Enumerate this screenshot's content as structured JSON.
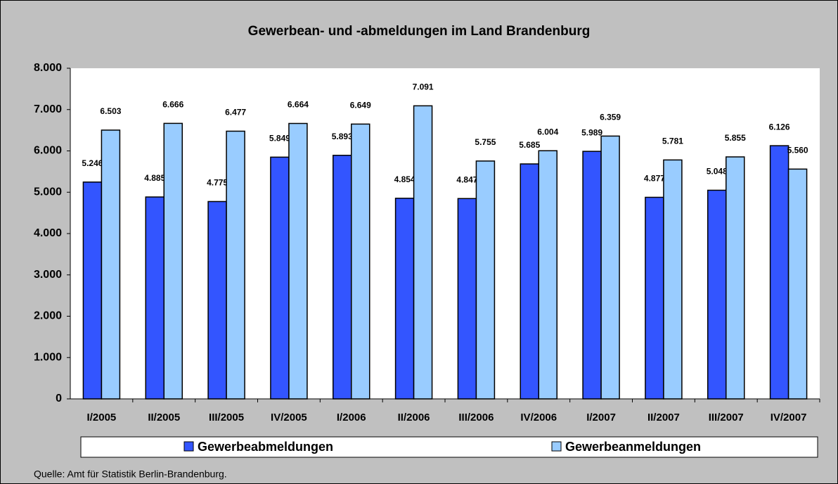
{
  "chart_data": {
    "type": "bar",
    "title": "Gewerbean- und -abmeldungen im Land Brandenburg",
    "source": "Quelle: Amt für Statistik Berlin-Brandenburg.",
    "categories": [
      "I/2005",
      "II/2005",
      "III/2005",
      "IV/2005",
      "I/2006",
      "II/2006",
      "III/2006",
      "IV/2006",
      "I/2007",
      "II/2007",
      "III/2007",
      "IV/2007"
    ],
    "series": [
      {
        "name": "Gewerbeabmeldungen",
        "color": "#3355ff",
        "values": [
          5246,
          4885,
          4775,
          5849,
          5893,
          4854,
          4847,
          5685,
          5989,
          4877,
          5048,
          6126
        ],
        "value_labels": [
          "5.246",
          "4.885",
          "4.775",
          "5.849",
          "5.893",
          "4.854",
          "4.847",
          "5.685",
          "5.989",
          "4.877",
          "5.048",
          "6.126"
        ]
      },
      {
        "name": "Gewerbeanmeldungen",
        "color": "#99ccff",
        "values": [
          6503,
          6666,
          6477,
          6664,
          6649,
          7091,
          5755,
          6004,
          6359,
          5781,
          5855,
          5560
        ],
        "value_labels": [
          "6.503",
          "6.666",
          "6.477",
          "6.664",
          "6.649",
          "7.091",
          "5.755",
          "6.004",
          "6.359",
          "5.781",
          "5.855",
          "5.560"
        ]
      }
    ],
    "ylim": [
      0,
      8000
    ],
    "yticks": [
      0,
      {
        "value": 1000,
        "label": "1.000"
      },
      {
        "value": 2000,
        "label": "2.000"
      },
      {
        "value": 3000,
        "label": "3.000"
      },
      {
        "value": 4000,
        "label": "4.000"
      },
      {
        "value": 5000,
        "label": "5.000"
      },
      {
        "value": 6000,
        "label": "6.000"
      },
      {
        "value": 7000,
        "label": "7.000"
      },
      {
        "value": 8000,
        "label": "8.000"
      }
    ],
    "grid": false,
    "legend": "bottom"
  }
}
